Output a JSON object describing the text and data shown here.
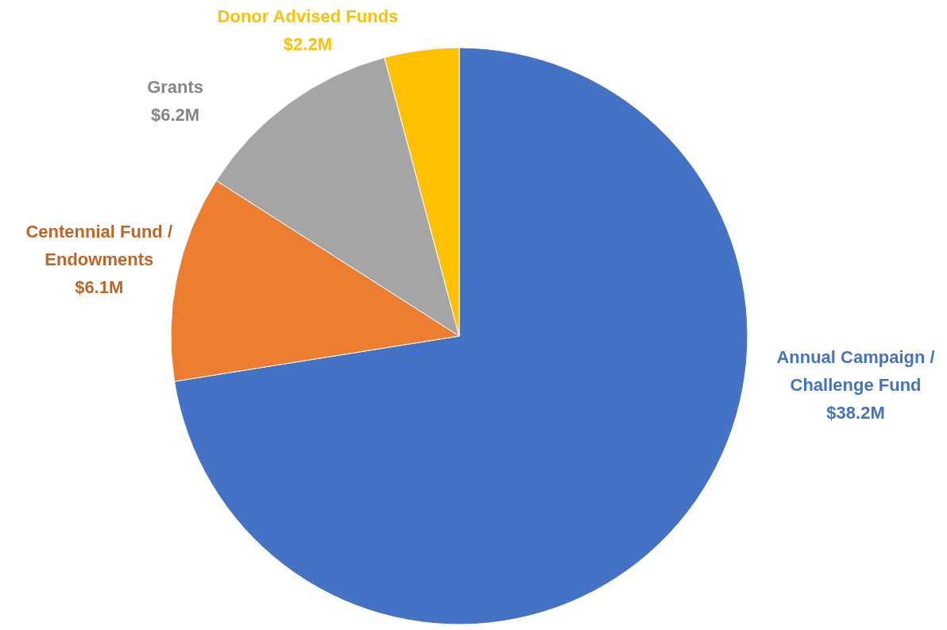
{
  "chart_data": {
    "type": "pie",
    "categories": [
      "Annual Campaign / Challenge Fund",
      "Centennial Fund / Endowments",
      "Grants",
      "Donor Advised Funds"
    ],
    "values": [
      38.2,
      6.1,
      6.2,
      2.2
    ],
    "colors": [
      "#4472c4",
      "#ed7d31",
      "#a5a5a5",
      "#ffc000"
    ],
    "value_labels": [
      "$38.2M",
      "$6.1M",
      "$6.2M",
      "$2.2M"
    ]
  }
}
